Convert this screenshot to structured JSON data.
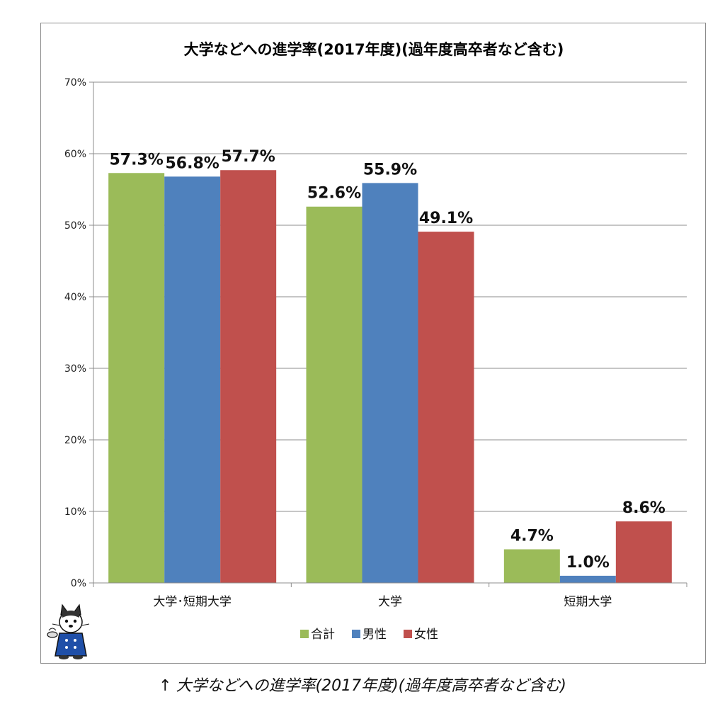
{
  "chart_data": {
    "type": "bar",
    "title": "大学などへの進学率(2017年度)(過年度高卒者など含む)",
    "xlabel": "",
    "ylabel": "",
    "categories": [
      "大学･短期大学",
      "大学",
      "短期大学"
    ],
    "series": [
      {
        "name": "合計",
        "values": [
          57.3,
          52.6,
          4.7
        ],
        "labels": [
          "57.3%",
          "52.6%",
          "4.7%"
        ],
        "color": "#9bbb59"
      },
      {
        "name": "男性",
        "values": [
          56.8,
          55.9,
          1.0
        ],
        "labels": [
          "56.8%",
          "55.9%",
          "1.0%"
        ],
        "color": "#4f81bd"
      },
      {
        "name": "女性",
        "values": [
          57.7,
          49.1,
          8.6
        ],
        "labels": [
          "57.7%",
          "49.1%",
          "8.6%"
        ],
        "color": "#c0504d"
      }
    ],
    "ylim": [
      0,
      70
    ],
    "yticks": [
      "0%",
      "10%",
      "20%",
      "30%",
      "40%",
      "50%",
      "60%",
      "70%"
    ],
    "grid": true,
    "legend_position": "bottom"
  },
  "caption": {
    "arrow": "↑",
    "text": "大学などへの進学率(2017年度)(過年度高卒者など含む)"
  },
  "mascot": {
    "icon": "cat-mascot-icon"
  }
}
